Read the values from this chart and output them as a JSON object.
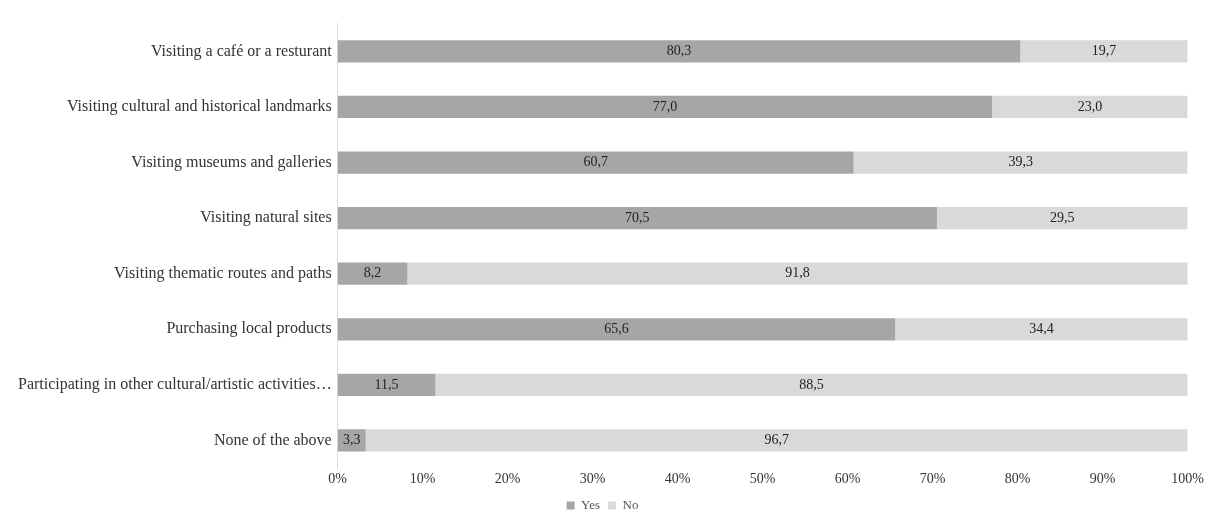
{
  "chart_data": {
    "type": "bar",
    "orientation": "horizontal",
    "stacked": true,
    "categories": [
      "Visiting a café or a resturant",
      "Visiting cultural and historical landmarks",
      "Visiting museums and galleries",
      "Visiting natural sites",
      "Visiting thematic routes and paths",
      "Purchasing local products",
      "Participating in other cultural/artistic activities…",
      "None of the above"
    ],
    "series": [
      {
        "name": "Yes",
        "color": "#a6a6a6",
        "values": [
          80.3,
          77.0,
          60.7,
          70.5,
          8.2,
          65.6,
          11.5,
          3.3
        ],
        "value_labels": [
          "80,3",
          "77,0",
          "60,7",
          "70,5",
          "8,2",
          "65,6",
          "11,5",
          "3,3"
        ]
      },
      {
        "name": "No",
        "color": "#d9d9d9",
        "values": [
          19.7,
          23.0,
          39.3,
          29.5,
          91.8,
          34.4,
          88.5,
          96.7
        ],
        "value_labels": [
          "19,7",
          "23,0",
          "39,3",
          "29,5",
          "91,8",
          "34,4",
          "88,5",
          "96,7"
        ]
      }
    ],
    "xlim": [
      0,
      100
    ],
    "xticks": [
      {
        "value": 0,
        "label": "0%"
      },
      {
        "value": 10,
        "label": "10%"
      },
      {
        "value": 20,
        "label": "20%"
      },
      {
        "value": 30,
        "label": "30%"
      },
      {
        "value": 40,
        "label": "40%"
      },
      {
        "value": 50,
        "label": "50%"
      },
      {
        "value": 60,
        "label": "60%"
      },
      {
        "value": 70,
        "label": "70%"
      },
      {
        "value": 80,
        "label": "80%"
      },
      {
        "value": 90,
        "label": "90%"
      },
      {
        "value": 100,
        "label": "100%"
      }
    ],
    "legend": "bottom"
  }
}
